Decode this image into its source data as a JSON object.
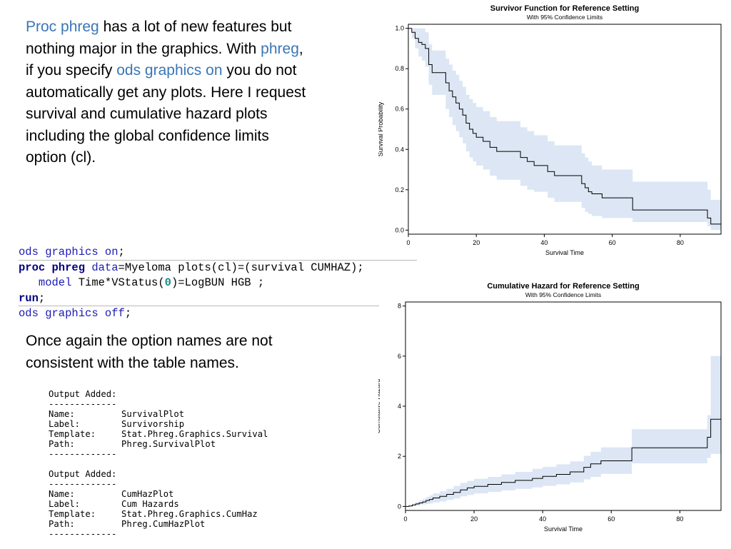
{
  "intro": {
    "segments": [
      {
        "text": "Proc phreg",
        "hl": true
      },
      {
        "text": " has a lot of new features but nothing major in the graphics. With ",
        "hl": false
      },
      {
        "text": "phreg",
        "hl": true
      },
      {
        "text": ", if you specify ",
        "hl": false
      },
      {
        "text": "ods graphics on",
        "hl": true
      },
      {
        "text": " you do not automatically get any plots.  Here I request survival and cumulative hazard plots including the global confidence limits option (cl).",
        "hl": false
      }
    ]
  },
  "code": {
    "lines": [
      [
        {
          "t": "ods graphics on",
          "c": "kw"
        },
        {
          "t": ";",
          "c": ""
        }
      ],
      [
        {
          "t": "proc phreg",
          "c": "kwb"
        },
        {
          "t": " ",
          "c": ""
        },
        {
          "t": "data",
          "c": "kw"
        },
        {
          "t": "=Myeloma plots(cl)=(survival CUMHAZ);",
          "c": ""
        }
      ],
      [
        {
          "t": "   ",
          "c": ""
        },
        {
          "t": "model",
          "c": "kw"
        },
        {
          "t": " Time*VStatus(",
          "c": ""
        },
        {
          "t": "0",
          "c": "num"
        },
        {
          "t": ")=LogBUN HGB ;",
          "c": ""
        }
      ],
      [
        {
          "t": "run",
          "c": "kwb"
        },
        {
          "t": ";",
          "c": ""
        }
      ],
      [
        {
          "t": "ods graphics off",
          "c": "kw"
        },
        {
          "t": ";",
          "c": ""
        }
      ]
    ]
  },
  "note": "Once again the option names are not consistent with the table names.",
  "output": {
    "blocks": [
      {
        "header": "Output Added:",
        "rule": "-------------",
        "rows": [
          {
            "key": "Name:",
            "value": "SurvivalPlot"
          },
          {
            "key": "Label:",
            "value": "Survivorship"
          },
          {
            "key": "Template:",
            "value": "Stat.Phreg.Graphics.Survival"
          },
          {
            "key": "Path:",
            "value": "Phreg.SurvivalPlot"
          }
        ]
      },
      {
        "header": "Output Added:",
        "rule": "-------------",
        "rows": [
          {
            "key": "Name:",
            "value": "CumHazPlot"
          },
          {
            "key": "Label:",
            "value": "Cum Hazards"
          },
          {
            "key": "Template:",
            "value": "Stat.Phreg.Graphics.CumHaz"
          },
          {
            "key": "Path:",
            "value": "Phreg.CumHazPlot"
          }
        ]
      }
    ]
  },
  "chart_data": [
    {
      "type": "line",
      "title": "Survivor Function for Reference Setting",
      "subtitle": "With 95% Confidence Limits",
      "xlabel": "Survival Time",
      "ylabel": "Survival Probability",
      "xlim": [
        0,
        92
      ],
      "ylim": [
        0,
        1
      ],
      "xticks": [
        "0",
        "20",
        "40",
        "60",
        "80"
      ],
      "xtick_values": [
        0,
        20,
        40,
        60,
        80
      ],
      "yticks": [
        "0.0",
        "0.2",
        "0.4",
        "0.6",
        "0.8",
        "1.0"
      ],
      "ytick_values": [
        0,
        0.2,
        0.4,
        0.6,
        0.8,
        1.0
      ],
      "grid": false,
      "band_color": "#dce6f4",
      "line_color": "#000000",
      "series": {
        "x": [
          0,
          1,
          2,
          3,
          4,
          5,
          6,
          7,
          11,
          12,
          13,
          14,
          15,
          16,
          17,
          18,
          19,
          20,
          22,
          24,
          26,
          33,
          35,
          37,
          41,
          43,
          51,
          52,
          53,
          54,
          57,
          66,
          88,
          89,
          92
        ],
        "y": [
          1.0,
          0.98,
          0.95,
          0.93,
          0.92,
          0.9,
          0.82,
          0.78,
          0.73,
          0.69,
          0.66,
          0.63,
          0.6,
          0.57,
          0.53,
          0.5,
          0.48,
          0.46,
          0.44,
          0.41,
          0.39,
          0.36,
          0.34,
          0.32,
          0.29,
          0.27,
          0.23,
          0.21,
          0.19,
          0.18,
          0.16,
          0.1,
          0.06,
          0.03,
          0.02
        ],
        "lower": [
          1.0,
          0.95,
          0.9,
          0.86,
          0.84,
          0.81,
          0.72,
          0.67,
          0.6,
          0.56,
          0.52,
          0.49,
          0.46,
          0.43,
          0.39,
          0.36,
          0.34,
          0.32,
          0.3,
          0.27,
          0.25,
          0.22,
          0.2,
          0.19,
          0.16,
          0.14,
          0.11,
          0.09,
          0.08,
          0.07,
          0.06,
          0.04,
          0.02,
          0.0,
          0.0
        ],
        "upper": [
          1.0,
          1.0,
          1.0,
          1.0,
          1.0,
          0.98,
          0.92,
          0.89,
          0.85,
          0.82,
          0.79,
          0.77,
          0.74,
          0.71,
          0.67,
          0.65,
          0.63,
          0.61,
          0.59,
          0.56,
          0.54,
          0.51,
          0.49,
          0.47,
          0.44,
          0.42,
          0.38,
          0.36,
          0.34,
          0.32,
          0.3,
          0.24,
          0.2,
          0.15,
          0.14
        ]
      }
    },
    {
      "type": "line",
      "title": "Cumulative Hazard for Reference Setting",
      "subtitle": "With 95% Confidence Limits",
      "xlabel": "Survival Time",
      "ylabel": "Cumulative Hazard",
      "xlim": [
        0,
        92
      ],
      "ylim": [
        0,
        8
      ],
      "xticks": [
        "0",
        "20",
        "40",
        "60",
        "80"
      ],
      "xtick_values": [
        0,
        20,
        40,
        60,
        80
      ],
      "yticks": [
        "0",
        "2",
        "4",
        "6",
        "8"
      ],
      "ytick_values": [
        0,
        2,
        4,
        6,
        8
      ],
      "grid": false,
      "band_color": "#dce6f4",
      "line_color": "#000000",
      "series": {
        "x": [
          0,
          1,
          2,
          3,
          4,
          5,
          6,
          7,
          8,
          10,
          12,
          14,
          16,
          18,
          20,
          24,
          28,
          32,
          37,
          40,
          44,
          48,
          52,
          54,
          57,
          66,
          88,
          89,
          90,
          92
        ],
        "y": [
          0.0,
          0.02,
          0.06,
          0.1,
          0.14,
          0.18,
          0.24,
          0.28,
          0.34,
          0.4,
          0.48,
          0.56,
          0.66,
          0.74,
          0.8,
          0.88,
          0.96,
          1.04,
          1.12,
          1.2,
          1.28,
          1.38,
          1.56,
          1.7,
          1.82,
          2.34,
          2.76,
          3.48,
          3.48,
          4.5
        ],
        "lower": [
          0.0,
          0.0,
          0.02,
          0.04,
          0.06,
          0.08,
          0.1,
          0.12,
          0.16,
          0.2,
          0.26,
          0.32,
          0.4,
          0.46,
          0.52,
          0.58,
          0.64,
          0.7,
          0.76,
          0.82,
          0.88,
          0.96,
          1.08,
          1.18,
          1.3,
          1.72,
          1.94,
          2.1,
          2.1,
          2.1
        ],
        "upper": [
          0.0,
          0.06,
          0.12,
          0.18,
          0.24,
          0.3,
          0.38,
          0.44,
          0.52,
          0.6,
          0.7,
          0.82,
          0.94,
          1.02,
          1.1,
          1.18,
          1.28,
          1.38,
          1.5,
          1.58,
          1.68,
          1.8,
          2.02,
          2.18,
          2.36,
          3.08,
          3.64,
          6.0,
          6.0,
          6.0
        ]
      }
    }
  ]
}
